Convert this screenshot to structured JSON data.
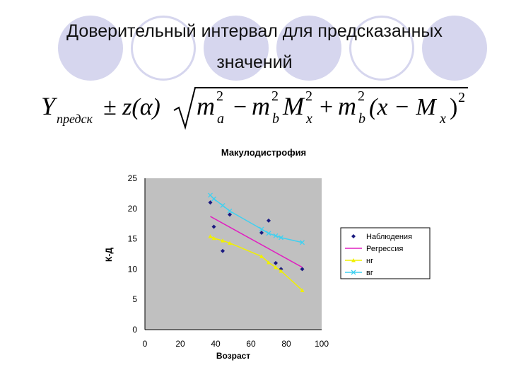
{
  "slide": {
    "title_line1": "Доверительный интервал для предсказанных",
    "title_line2": "значений"
  },
  "formula": {
    "Y": "Y",
    "Y_sub": "предск",
    "pm": "± z(α)",
    "m": "m",
    "sub_a": "a",
    "sub_b": "b",
    "minus": "−",
    "plus": "+",
    "M": "M",
    "sub_x": "x",
    "sup2": "2",
    "paren_expr": "(x − M",
    "paren_close": ")"
  },
  "colors": {
    "circle": "#d6d6ee",
    "plot_bg": "#c0c0c0",
    "observations": "#1a1a80",
    "regression": "#e020c0",
    "lower": "#f0f000",
    "upper": "#40d0f0"
  },
  "chart_data": {
    "type": "line",
    "title": "Макулодистрофия",
    "xlabel": "Возраст",
    "ylabel": "К-Д",
    "xlim": [
      0,
      100
    ],
    "ylim": [
      0,
      25
    ],
    "xticks": [
      "0",
      "20",
      "40",
      "60",
      "80",
      "100"
    ],
    "yticks": [
      "0",
      "5",
      "10",
      "15",
      "20",
      "25"
    ],
    "grid": false,
    "legend_position": "right",
    "series": [
      {
        "name": "Наблюдения",
        "kind": "scatter",
        "marker": "diamond",
        "points": [
          [
            37,
            21
          ],
          [
            39,
            17
          ],
          [
            44,
            13
          ],
          [
            48,
            19
          ],
          [
            66,
            16
          ],
          [
            70,
            18
          ],
          [
            74,
            11
          ],
          [
            77,
            10
          ],
          [
            89,
            10
          ]
        ]
      },
      {
        "name": "Регрессия",
        "kind": "line",
        "marker": "none",
        "points": [
          [
            37,
            18.7
          ],
          [
            89,
            10.3
          ]
        ]
      },
      {
        "name": "нг",
        "kind": "line",
        "marker": "triangle",
        "points": [
          [
            37,
            15.4
          ],
          [
            39,
            15.1
          ],
          [
            44,
            14.7
          ],
          [
            48,
            14.3
          ],
          [
            66,
            12.1
          ],
          [
            70,
            11.1
          ],
          [
            74,
            10.3
          ],
          [
            77,
            9.7
          ],
          [
            89,
            6.5
          ]
        ]
      },
      {
        "name": "вг",
        "kind": "line",
        "marker": "x",
        "points": [
          [
            37,
            22.2
          ],
          [
            39,
            21.6
          ],
          [
            44,
            20.5
          ],
          [
            48,
            19.6
          ],
          [
            66,
            16.6
          ],
          [
            70,
            15.9
          ],
          [
            74,
            15.5
          ],
          [
            77,
            15.2
          ],
          [
            89,
            14.4
          ]
        ]
      }
    ]
  }
}
